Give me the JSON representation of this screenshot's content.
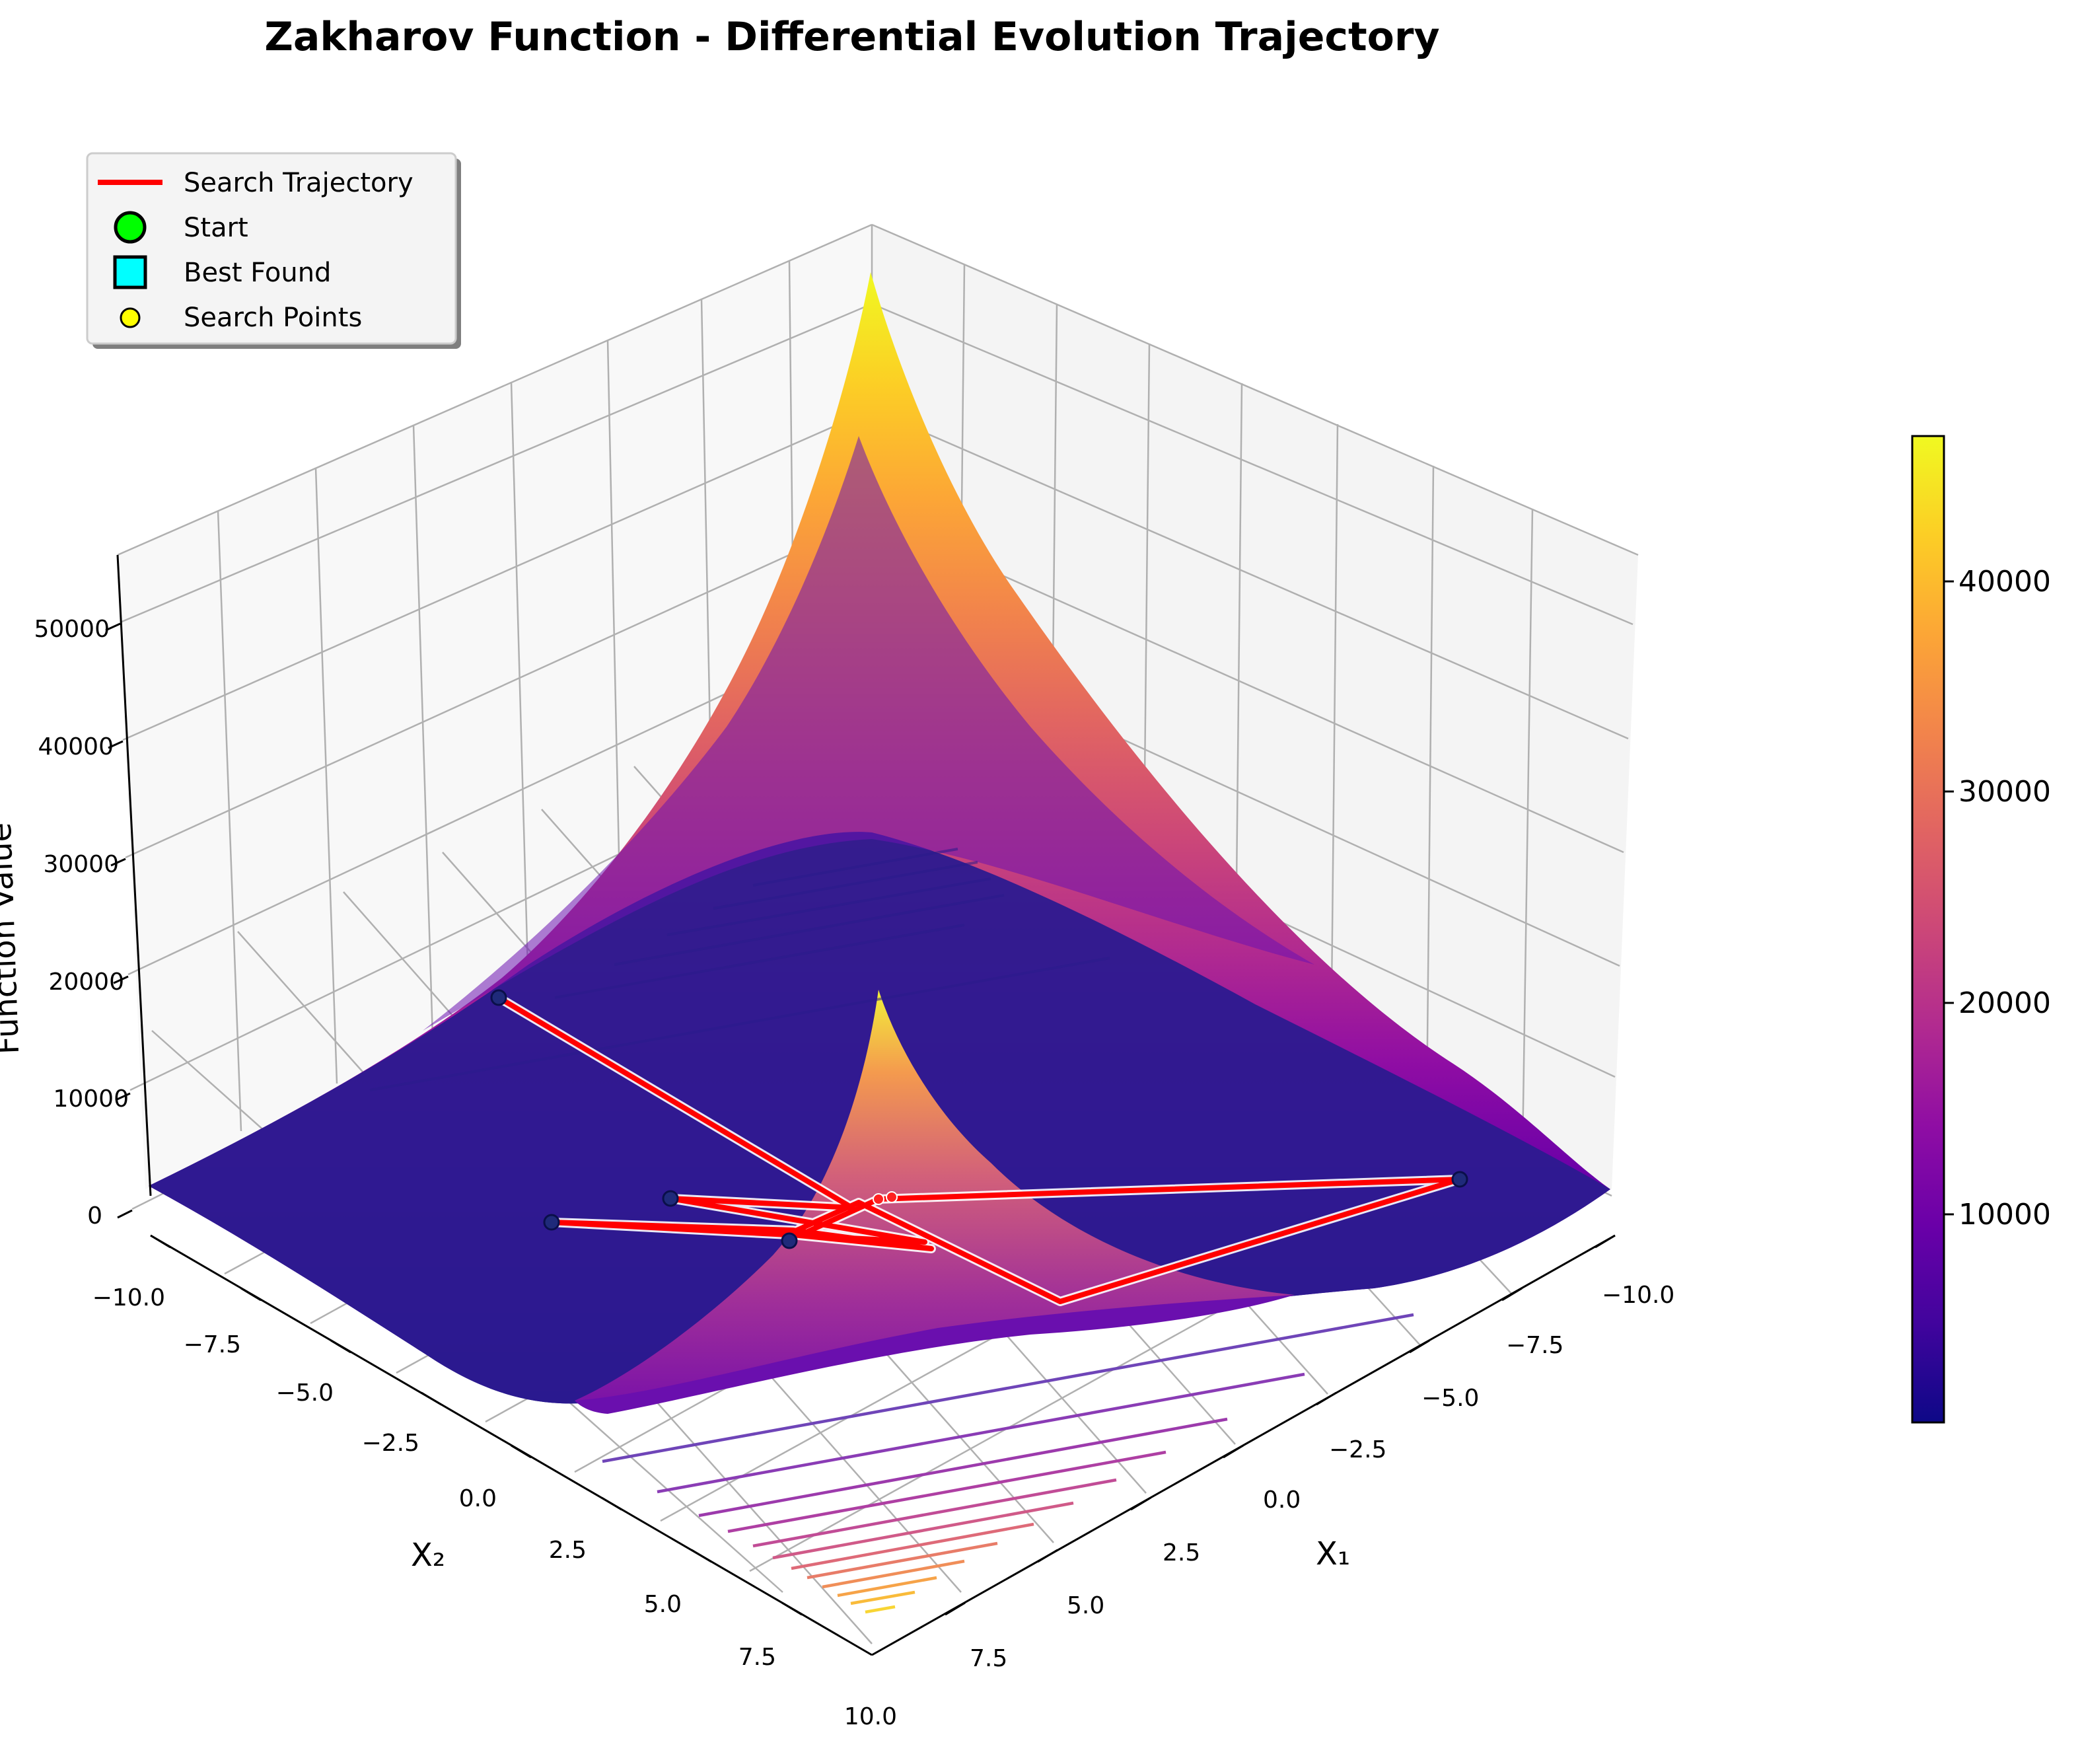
{
  "chart_data": {
    "type": "surface3d",
    "title": "Zakharov Function - Differential Evolution Trajectory",
    "x_axis": {
      "label": "X₁",
      "range": [
        -10,
        10
      ],
      "ticks": [
        "−10.0",
        "−7.5",
        "−5.0",
        "−2.5",
        "0.0",
        "2.5",
        "5.0",
        "7.5",
        "10.0"
      ]
    },
    "y_axis": {
      "label": "X₂",
      "range": [
        -10,
        10
      ],
      "ticks": [
        "−10.0",
        "−7.5",
        "−5.0",
        "−2.5",
        "0.0",
        "2.5",
        "5.0",
        "7.5",
        "10.0"
      ]
    },
    "z_axis": {
      "label": "Function Value",
      "range": [
        0,
        55000
      ],
      "ticks": [
        "0",
        "10000",
        "20000",
        "30000",
        "40000",
        "50000"
      ]
    },
    "colorbar": {
      "colormap": "plasma",
      "range": [
        0,
        47000
      ],
      "ticks": [
        "10000",
        "20000",
        "30000",
        "40000"
      ]
    },
    "legend": {
      "placement": "top-left",
      "entries": [
        {
          "label": "Search Trajectory",
          "marker": "line",
          "color": "#ff0000"
        },
        {
          "label": "Start",
          "marker": "circle",
          "color": "#00ff00"
        },
        {
          "label": "Best Found",
          "marker": "square",
          "color": "#00ffff"
        },
        {
          "label": "Search Points",
          "marker": "small-circle",
          "color": "#ffff00"
        }
      ]
    },
    "trajectory": {
      "color": "#ff0000",
      "points": [
        {
          "x1": -8.5,
          "x2": -2.0
        },
        {
          "x1": 1.5,
          "x2": -0.8
        },
        {
          "x1": -1.0,
          "x2": 1.5
        },
        {
          "x1": 0.5,
          "x2": -0.5
        },
        {
          "x1": -1.0,
          "x2": -2.5
        },
        {
          "x1": 0.5,
          "x2": -0.5
        },
        {
          "x1": 1.0,
          "x2": -4.5
        },
        {
          "x1": 0.5,
          "x2": -0.5
        },
        {
          "x1": -0.5,
          "x2": 1.0
        },
        {
          "x1": 6.8,
          "x2": 1.5
        },
        {
          "x1": 1.2,
          "x2": 6.5
        },
        {
          "x1": 0.8,
          "x2": 0.8
        },
        {
          "x1": 0.5,
          "x2": -0.5
        }
      ]
    }
  }
}
